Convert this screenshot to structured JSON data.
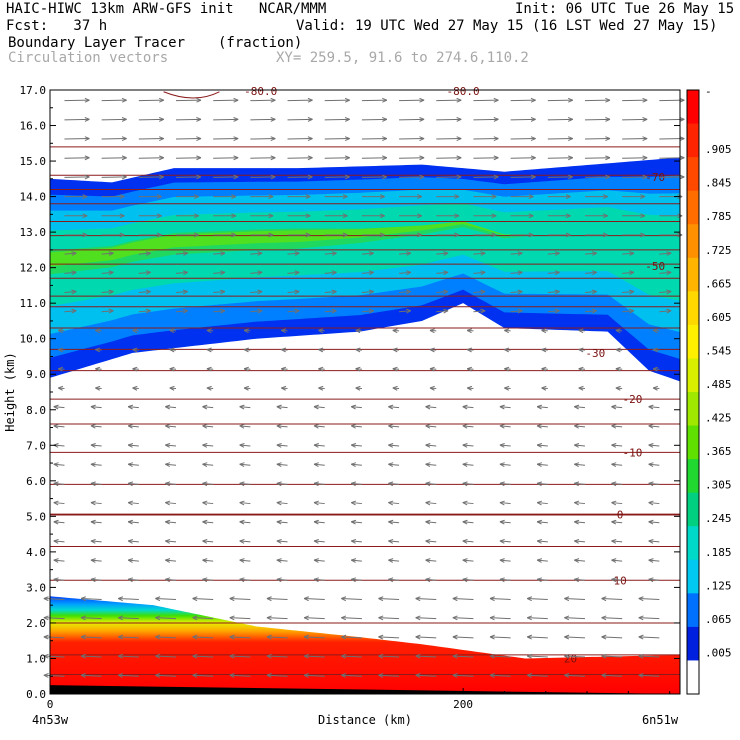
{
  "header": {
    "line1_left": "HAIC-HIWC 13km ARW-GFS init   NCAR/MMM",
    "line1_right": "Init: 06 UTC Tue 26 May 15",
    "line2_left": "Fcst:   37 h",
    "line2_right": "Valid: 19 UTC Wed 27 May 15 (16 LST Wed 27 May 15)",
    "line3_field": "Boundary Layer Tracer",
    "line3_units": "(fraction)",
    "line4_field": "Circulation vectors",
    "line4_xy": "XY= 259.5, 91.6 to 274.6,110.2"
  },
  "chart_data": {
    "type": "cross-section",
    "xlabel": "Distance (km)",
    "ylabel": "Height (km)",
    "xlim": [
      0,
      305
    ],
    "ylim": [
      0,
      17
    ],
    "x_ticks": [
      "0",
      "200"
    ],
    "x_tick_values": [
      0,
      200
    ],
    "x_end_labels": [
      "4n53w",
      "6n51w"
    ],
    "y_ticks": [
      "0.0",
      "1.0",
      "2.0",
      "3.0",
      "4.0",
      "5.0",
      "6.0",
      "7.0",
      "8.0",
      "9.0",
      "10.0",
      "11.0",
      "12.0",
      "13.0",
      "14.0",
      "15.0",
      "16.0",
      "17.0"
    ],
    "colorbar": {
      "labels": [
        "-",
        ".905",
        ".845",
        ".785",
        ".725",
        ".665",
        ".605",
        ".545",
        ".485",
        ".425",
        ".365",
        ".305",
        ".245",
        ".185",
        ".125",
        ".065",
        ".005"
      ],
      "colors": [
        "#ff0000",
        "#ff2400",
        "#ff4800",
        "#ff6c00",
        "#ff9000",
        "#ffb400",
        "#ffd800",
        "#fff000",
        "#d8f000",
        "#a0e800",
        "#60e000",
        "#20d830",
        "#00d080",
        "#00d8c8",
        "#00c8f0",
        "#0070ff",
        "#0020e0",
        "#ffffff"
      ]
    },
    "temperature_contours": [
      {
        "label": "-70",
        "height_km": 14.55,
        "x_km": 293
      },
      {
        "label": "-50",
        "height_km": 12.05,
        "x_km": 293
      },
      {
        "label": "-30",
        "height_km": 9.6,
        "x_km": 264
      },
      {
        "label": "-20",
        "height_km": 8.3,
        "x_km": 282
      },
      {
        "label": "-10",
        "height_km": 6.8,
        "x_km": 282
      },
      {
        "label": "0",
        "height_km": 5.05,
        "x_km": 276
      },
      {
        "label": "10",
        "height_km": 3.2,
        "x_km": 276
      },
      {
        "label": "20",
        "height_km": 1.0,
        "x_km": 252
      }
    ],
    "top_partial_labels": [
      "-80.0",
      "-80.0"
    ],
    "plume_upper": {
      "top_km": [
        [
          0,
          14.5
        ],
        [
          30,
          14.4
        ],
        [
          60,
          14.8
        ],
        [
          120,
          14.8
        ],
        [
          180,
          14.9
        ],
        [
          220,
          14.7
        ],
        [
          305,
          15.1
        ]
      ],
      "base_km": [
        [
          0,
          8.9
        ],
        [
          40,
          9.6
        ],
        [
          100,
          10.0
        ],
        [
          150,
          10.2
        ],
        [
          180,
          10.5
        ],
        [
          200,
          11.0
        ],
        [
          220,
          10.3
        ],
        [
          270,
          10.2
        ],
        [
          290,
          9.1
        ],
        [
          305,
          8.8
        ]
      ]
    },
    "plume_boundary_layer": {
      "top_km": [
        [
          0,
          2.75
        ],
        [
          50,
          2.5
        ],
        [
          100,
          1.9
        ],
        [
          150,
          1.6
        ],
        [
          180,
          1.4
        ],
        [
          230,
          1.0
        ],
        [
          305,
          1.1
        ]
      ]
    }
  }
}
